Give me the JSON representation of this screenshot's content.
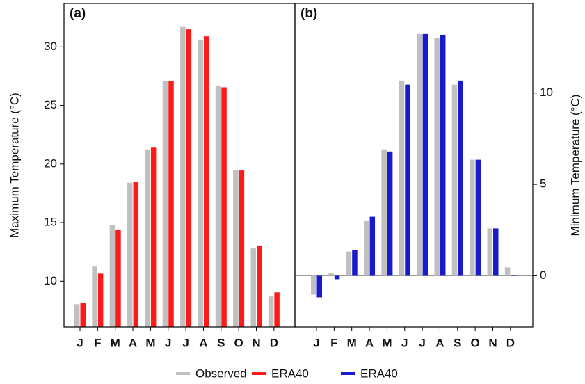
{
  "chart_data": [
    {
      "type": "bar",
      "panel_label": "(a)",
      "ylabel": "Maximum Temperature (°C)",
      "categories": [
        "J",
        "F",
        "M",
        "A",
        "M",
        "J",
        "J",
        "A",
        "S",
        "O",
        "N",
        "D"
      ],
      "series": [
        {
          "name": "Observed",
          "color": "#c0c0c0",
          "values": [
            8.04,
            11.25,
            14.8,
            18.4,
            21.25,
            27.1,
            31.7,
            30.6,
            26.7,
            19.5,
            12.8,
            8.7
          ]
        },
        {
          "name": "ERA40",
          "color": "#ff1a1a",
          "values": [
            8.15,
            10.65,
            14.35,
            18.5,
            21.4,
            27.1,
            31.5,
            30.9,
            26.55,
            19.45,
            13.05,
            9.05
          ]
        }
      ],
      "ylim": [
        6.1,
        33.7
      ],
      "yticks": [
        10,
        15,
        20,
        25,
        30
      ],
      "y_axis_side": "left"
    },
    {
      "type": "bar",
      "panel_label": "(b)",
      "ylabel": "Minimum Temperature (°C)",
      "categories": [
        "J",
        "F",
        "M",
        "A",
        "M",
        "J",
        "J",
        "A",
        "S",
        "O",
        "N",
        "D"
      ],
      "series": [
        {
          "name": "Observed",
          "color": "#c0c0c0",
          "values": [
            -1.03,
            0.15,
            1.33,
            3.0,
            6.92,
            10.68,
            13.23,
            13.0,
            10.46,
            6.35,
            2.59,
            0.46
          ]
        },
        {
          "name": "ERA40",
          "color": "#1a1acc",
          "values": [
            -1.18,
            -0.19,
            1.41,
            3.23,
            6.8,
            10.46,
            13.23,
            13.19,
            10.68,
            6.35,
            2.59,
            0.03
          ]
        }
      ],
      "ylim": [
        -2.8,
        14.9
      ],
      "yticks": [
        0,
        5,
        10
      ],
      "y_axis_side": "right"
    }
  ]
}
